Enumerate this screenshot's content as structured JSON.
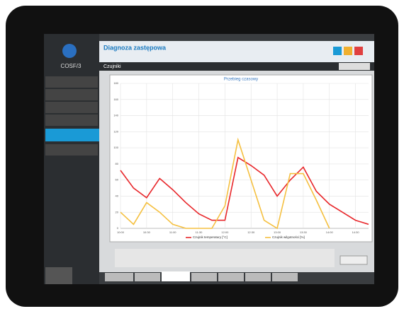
{
  "header": {
    "logo": "COSF/3",
    "title": "Diagnoza zastępowa",
    "section": "Czujniki"
  },
  "chart_data": {
    "type": "line",
    "title": "Przebieg czasowy",
    "categories": [
      "10:00",
      null,
      "10:30",
      null,
      "11:00",
      null,
      "11:30",
      null,
      "12:00",
      null,
      "12:30",
      null,
      "13:00",
      null,
      "13:30",
      null,
      "14:00",
      null,
      "14:30",
      null
    ],
    "series": [
      {
        "name": "Czujnik temperatury [°C]",
        "color": "#e8262a",
        "values": [
          72,
          50,
          38,
          62,
          48,
          32,
          18,
          10,
          10,
          88,
          78,
          66,
          40,
          60,
          76,
          46,
          30,
          20,
          10,
          5
        ]
      },
      {
        "name": "Czujnik wilgotności [%]",
        "color": "#f5c040",
        "values": [
          20,
          5,
          32,
          20,
          5,
          0,
          0,
          0,
          28,
          110,
          60,
          10,
          0,
          68,
          68,
          35,
          0,
          null,
          null,
          null
        ]
      }
    ],
    "ylim": [
      0,
      180
    ],
    "yticks": [
      0,
      20,
      40,
      60,
      80,
      100,
      120,
      140,
      160,
      180
    ],
    "grid": true
  }
}
